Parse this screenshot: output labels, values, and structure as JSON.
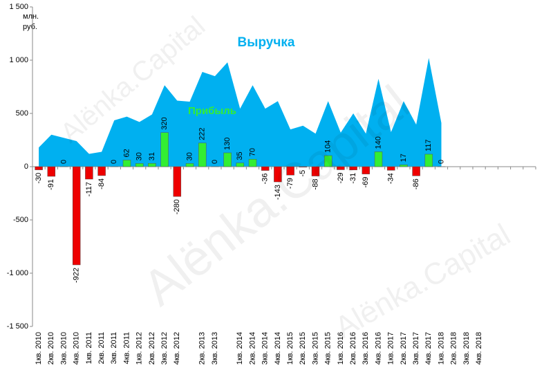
{
  "chart_data": {
    "type": "bar_area",
    "unit_label": "млн. руб.",
    "watermark": "Alënka.Capital",
    "categories": [
      "1кв. 2010",
      "2кв. 2010",
      "3кв. 2010",
      "4кв. 2010",
      "1кв. 2011",
      "2кв. 2011",
      "3кв. 2011",
      "4кв. 2011",
      "1кв. 2012",
      "2кв. 2012",
      "3кв. 2012",
      "4кв. 2012",
      null,
      "2кв. 2013",
      "3кв. 2013",
      null,
      "1кв. 2014",
      "2кв. 2014",
      "3кв. 2014",
      "4кв. 2014",
      "1кв. 2015",
      "2кв. 2015",
      "3кв. 2015",
      "4кв. 2015",
      "1кв. 2016",
      "2кв. 2016",
      "3кв. 2016",
      "4кв. 2016",
      "1кв. 2017",
      "2кв. 2017",
      "3кв. 2017",
      "4кв. 2017",
      "1кв. 2018",
      "2кв. 2018",
      "3кв. 2018",
      "4кв. 2018",
      null,
      null,
      null,
      null
    ],
    "series": [
      {
        "name": "Выручка",
        "type": "area",
        "color": "#00b0f0",
        "values": [
          180,
          300,
          270,
          240,
          120,
          140,
          435,
          470,
          420,
          490,
          765,
          620,
          610,
          890,
          850,
          980,
          545,
          765,
          545,
          615,
          350,
          385,
          310,
          615,
          320,
          500,
          310,
          825,
          325,
          615,
          395,
          1020,
          410,
          null,
          null,
          null,
          null,
          null,
          null,
          null
        ]
      },
      {
        "name": "Прибыль",
        "type": "bar",
        "color": "#33ee33",
        "negative_color": "#ee0000",
        "label_color": "#33ee33",
        "values": [
          -30,
          -91,
          0,
          -922,
          -117,
          -84,
          0,
          62,
          30,
          31,
          320,
          -280,
          30,
          222,
          0,
          130,
          35,
          70,
          -36,
          -143,
          -79,
          -5,
          -88,
          104,
          -29,
          -31,
          -69,
          140,
          -34,
          17,
          -86,
          117,
          0,
          null,
          null,
          null,
          null,
          null,
          null,
          null
        ]
      }
    ],
    "ylim": [
      -1500,
      1500
    ],
    "yticks": [
      {
        "value": 1500,
        "label": "1 500"
      },
      {
        "value": 1000,
        "label": "1 000"
      },
      500,
      0,
      -500,
      {
        "value": -1000,
        "label": "-1 000"
      },
      {
        "value": -1500,
        "label": "-1 500"
      }
    ],
    "grid": false
  }
}
